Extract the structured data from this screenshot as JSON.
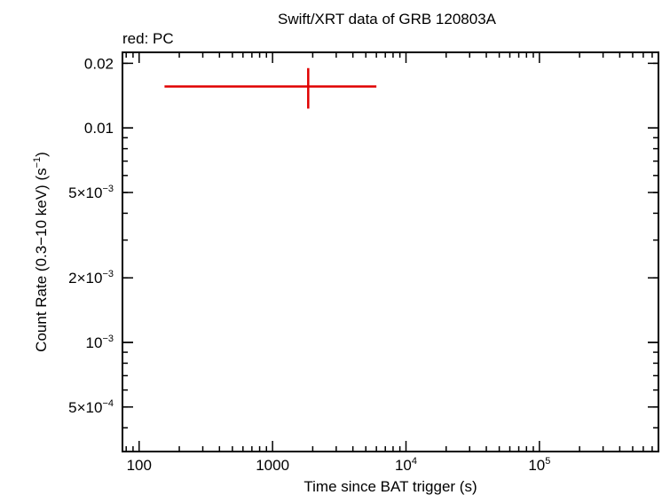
{
  "chart_data": {
    "type": "scatter",
    "title": "Swift/XRT data of GRB 120803A",
    "subtitle": "red: PC",
    "xlabel": "Time since BAT trigger (s)",
    "ylabel_main": "Count Rate (0.3−10 keV) (s",
    "ylabel_sup": "−1",
    "ylabel_close": ")",
    "x_scale": "log",
    "y_scale": "log",
    "xlim": [
      75,
      780000
    ],
    "ylim": [
      0.00031,
      0.0225
    ],
    "x_ticks": [
      {
        "value": 100,
        "base": "100",
        "sup": ""
      },
      {
        "value": 1000,
        "base": "1000",
        "sup": ""
      },
      {
        "value": 10000,
        "base": "10",
        "sup": "4"
      },
      {
        "value": 100000,
        "base": "10",
        "sup": "5"
      }
    ],
    "y_ticks": [
      {
        "value": 0.02,
        "base": "0.02",
        "sup": ""
      },
      {
        "value": 0.01,
        "base": "0.01",
        "sup": ""
      },
      {
        "value": 0.005,
        "base": "5×10",
        "sup": "−3"
      },
      {
        "value": 0.002,
        "base": "2×10",
        "sup": "−3"
      },
      {
        "value": 0.001,
        "base": "10",
        "sup": "−3"
      },
      {
        "value": 0.0005,
        "base": "5×10",
        "sup": "−4"
      }
    ],
    "grid": false,
    "series": [
      {
        "color": "#e00000",
        "points": [
          {
            "x": 1850,
            "y": 0.0156,
            "x_lo": 155,
            "x_hi": 6000,
            "y_lo": 0.0123,
            "y_hi": 0.019
          }
        ]
      }
    ]
  }
}
